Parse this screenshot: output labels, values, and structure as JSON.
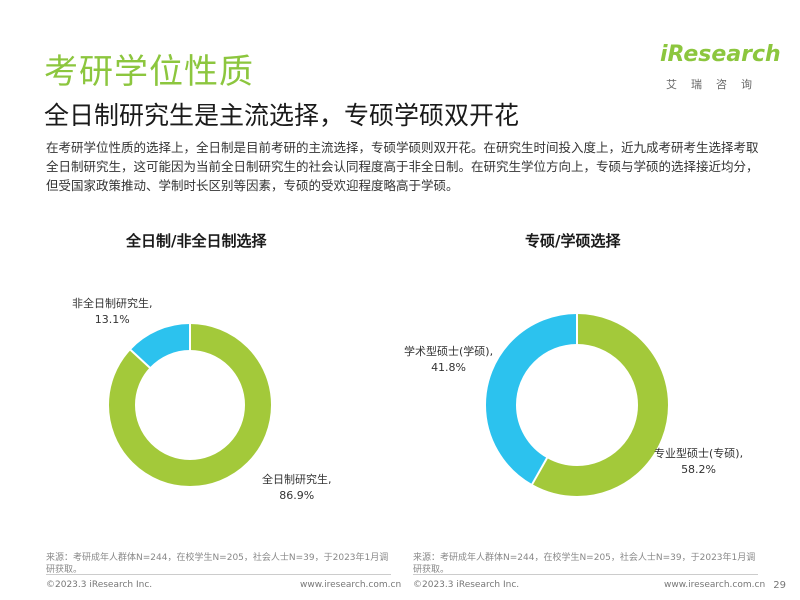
{
  "header": {
    "title": "考研学位性质",
    "subtitle": "全日制研究生是主流选择，专硕学硕双开花",
    "body": "在考研学位性质的选择上，全日制是目前考研的主流选择，专硕学硕则双开花。在研究生时间投入度上，近九成考研考生选择考取全日制研究生，这可能因为当前全日制研究生的社会认同程度高于非全日制。在研究生学位方向上，专硕与学硕的选择接近均分，但受国家政策推动、学制时长区别等因素，专硕的受欢迎程度略高于学硕。"
  },
  "logo": {
    "word": "iResearch",
    "sub": "艾瑞咨询"
  },
  "colors": {
    "green": "#a3c93a",
    "blue": "#2cc2ee",
    "title_green": "#8cc63e"
  },
  "chart_data": [
    {
      "type": "pie",
      "title": "全日制/非全日制选择",
      "donut": true,
      "slices": [
        {
          "label": "全日制研究生,",
          "value": 86.9,
          "display": "86.9%"
        },
        {
          "label": "非全日制研究生,",
          "value": 13.1,
          "display": "13.1%"
        }
      ]
    },
    {
      "type": "pie",
      "title": "专硕/学硕选择",
      "donut": true,
      "slices": [
        {
          "label": "专业型硕士(专硕),",
          "value": 58.2,
          "display": "58.2%"
        },
        {
          "label": "学术型硕士(学硕),",
          "value": 41.8,
          "display": "41.8%"
        }
      ]
    }
  ],
  "sources": {
    "left": "来源：考研成年人群体N=244，在校学生N=205，社会人士N=39，于2023年1月调研获取。",
    "right": "来源：考研成年人群体N=244，在校学生N=205，社会人士N=39，于2023年1月调研获取。"
  },
  "footer": {
    "copyright_left": "©2023.3 iResearch Inc.",
    "url_left": "www.iresearch.com.cn",
    "copyright_right": "©2023.3 iResearch Inc.",
    "url_right": "www.iresearch.com.cn",
    "page": "29"
  }
}
